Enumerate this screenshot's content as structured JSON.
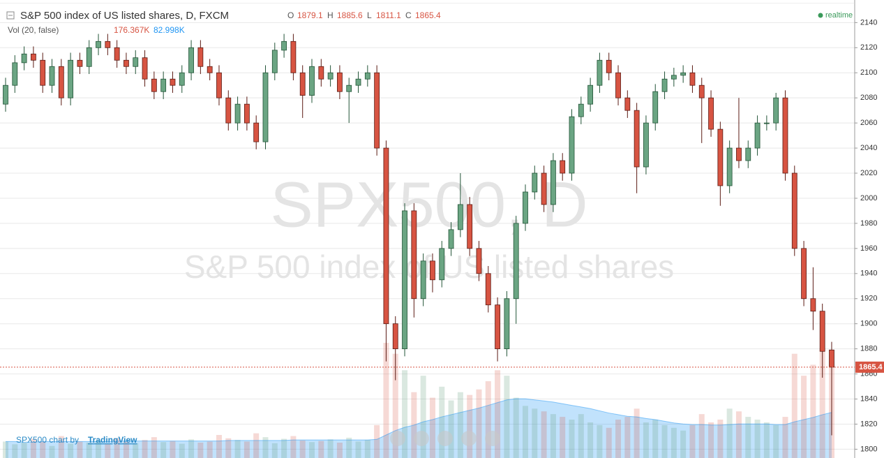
{
  "chart_data": {
    "type": "candlestick",
    "title": "S&P 500 index of US listed shares, D, FXCM",
    "ohlc_labels": [
      "O",
      "H",
      "L",
      "C"
    ],
    "status": "realtime",
    "watermark": [
      "SPX500, D",
      "S&P 500 index of US listed shares"
    ],
    "footer": "SPX500 chart by",
    "footer_link": "TradingView",
    "up_color": "#6ba583",
    "down_color": "#d75442",
    "ylim": [
      1793,
      2158
    ],
    "yticks": [
      1800,
      1820,
      1840,
      1860,
      1880,
      1900,
      1920,
      1940,
      1960,
      1980,
      2000,
      2020,
      2040,
      2060,
      2080,
      2100,
      2120,
      2140
    ],
    "grid": true,
    "open": [
      2075,
      2090,
      2108,
      2115,
      2110,
      2090,
      2105,
      2080,
      2110,
      2105,
      2120,
      2125,
      2120,
      2110,
      2105,
      2112,
      2095,
      2085,
      2095,
      2090,
      2100,
      2120,
      2105,
      2100,
      2080,
      2060,
      2075,
      2060,
      2045,
      2100,
      2118,
      2125,
      2100,
      2082,
      2105,
      2095,
      2100,
      2085,
      2090,
      2095,
      2100,
      2040,
      1900,
      1880,
      1990,
      1920,
      1950,
      1935,
      1960,
      1975,
      1995,
      1960,
      1940,
      1915,
      1880,
      1920,
      1980,
      2005,
      2020,
      1995,
      2030,
      2020,
      2065,
      2075,
      2090,
      2110,
      2100,
      2080,
      2070,
      2025,
      2060,
      2085,
      2095,
      2098,
      2100,
      2090,
      2080,
      2055,
      2010,
      2040,
      2030,
      2040,
      2060,
      2060,
      2080,
      2020,
      1960,
      1920,
      1910,
      1879.1
    ],
    "high": [
      2096,
      2114,
      2121,
      2121,
      2116,
      2111,
      2111,
      2116,
      2116,
      2126,
      2131,
      2131,
      2126,
      2116,
      2118,
      2118,
      2101,
      2101,
      2101,
      2106,
      2126,
      2126,
      2111,
      2106,
      2086,
      2081,
      2081,
      2066,
      2106,
      2124,
      2131,
      2131,
      2106,
      2111,
      2111,
      2106,
      2106,
      2096,
      2101,
      2106,
      2106,
      2046,
      1906,
      1996,
      1996,
      1956,
      1956,
      1966,
      1981,
      2020,
      2001,
      1966,
      1946,
      1921,
      1926,
      1986,
      2011,
      2026,
      2026,
      2036,
      2036,
      2071,
      2081,
      2096,
      2116,
      2116,
      2106,
      2086,
      2076,
      2066,
      2091,
      2101,
      2104,
      2106,
      2106,
      2096,
      2086,
      2061,
      2046,
      2080,
      2046,
      2066,
      2066,
      2084,
      2086,
      2026,
      1966,
      1945,
      1916,
      1885.6
    ],
    "low": [
      2069,
      2084,
      2102,
      2104,
      2084,
      2084,
      2074,
      2074,
      2099,
      2099,
      2114,
      2114,
      2104,
      2099,
      2099,
      2089,
      2079,
      2079,
      2084,
      2084,
      2094,
      2099,
      2094,
      2074,
      2054,
      2054,
      2054,
      2039,
      2039,
      2094,
      2112,
      2094,
      2064,
      2076,
      2089,
      2089,
      2079,
      2060,
      2084,
      2089,
      2034,
      1870,
      1855,
      1874,
      1905,
      1914,
      1925,
      1929,
      1954,
      1969,
      1954,
      1934,
      1909,
      1870,
      1874,
      1900,
      1974,
      1999,
      1989,
      1989,
      2014,
      2014,
      2059,
      2069,
      2084,
      2094,
      2074,
      2064,
      2004,
      2019,
      2054,
      2079,
      2089,
      2092,
      2084,
      2044,
      2049,
      1994,
      2004,
      2024,
      2024,
      2034,
      2054,
      2054,
      2014,
      1954,
      1914,
      1895,
      1857,
      1811.1
    ],
    "close": [
      2090,
      2108,
      2115,
      2110,
      2090,
      2105,
      2080,
      2110,
      2105,
      2120,
      2125,
      2120,
      2110,
      2105,
      2112,
      2095,
      2085,
      2095,
      2090,
      2100,
      2120,
      2105,
      2100,
      2080,
      2060,
      2075,
      2060,
      2045,
      2100,
      2118,
      2125,
      2100,
      2082,
      2105,
      2095,
      2100,
      2085,
      2090,
      2095,
      2100,
      2040,
      1900,
      1880,
      1990,
      1920,
      1950,
      1935,
      1960,
      1975,
      1995,
      1960,
      1940,
      1915,
      1880,
      1920,
      1980,
      2005,
      2020,
      1995,
      2030,
      2020,
      2065,
      2075,
      2090,
      2110,
      2100,
      2080,
      2070,
      2025,
      2060,
      2085,
      2095,
      2098,
      2100,
      2090,
      2080,
      2055,
      2010,
      2040,
      2030,
      2040,
      2060,
      2060,
      2080,
      2020,
      1960,
      1920,
      1910,
      1878,
      1865.4
    ],
    "close_label_color": "#d75442",
    "volume": {
      "title": "Vol (20, false)",
      "series": [
        {
          "name": "Volume",
          "values": [
            30,
            25,
            28,
            35,
            30,
            22,
            40,
            26,
            30,
            28,
            32,
            25,
            36,
            30,
            27,
            33,
            38,
            29,
            31,
            26,
            34,
            28,
            30,
            42,
            36,
            33,
            30,
            45,
            38,
            27,
            35,
            40,
            32,
            29,
            31,
            34,
            28,
            37,
            30,
            33,
            60,
            210,
            190,
            160,
            120,
            150,
            110,
            130,
            105,
            120,
            115,
            125,
            140,
            160,
            150,
            110,
            95,
            90,
            85,
            80,
            75,
            70,
            80,
            65,
            60,
            55,
            70,
            75,
            90,
            65,
            70,
            60,
            55,
            50,
            60,
            80,
            65,
            70,
            90,
            85,
            75,
            70,
            65,
            60,
            75,
            190,
            150,
            170,
            200,
            176.367
          ],
          "value_label": "176.367K",
          "color": "#d75442"
        },
        {
          "name": "Volume MA",
          "values": [
            30,
            30,
            29,
            29,
            30,
            30,
            30,
            30,
            30,
            30,
            30,
            30,
            31,
            31,
            31,
            31,
            31,
            31,
            31,
            31,
            31,
            31,
            31,
            31,
            32,
            32,
            32,
            32,
            32,
            32,
            32,
            33,
            33,
            33,
            33,
            33,
            33,
            33,
            33,
            33,
            34,
            42,
            50,
            56,
            60,
            66,
            70,
            75,
            79,
            83,
            87,
            91,
            96,
            101,
            106,
            108,
            108,
            106,
            104,
            102,
            99,
            96,
            93,
            90,
            86,
            82,
            79,
            76,
            75,
            72,
            70,
            67,
            64,
            62,
            61,
            61,
            60,
            60,
            61,
            62,
            62,
            62,
            62,
            61,
            61,
            66,
            70,
            74,
            79,
            82.998
          ],
          "value_label": "82.998K",
          "color": "#2196f3"
        }
      ]
    }
  }
}
